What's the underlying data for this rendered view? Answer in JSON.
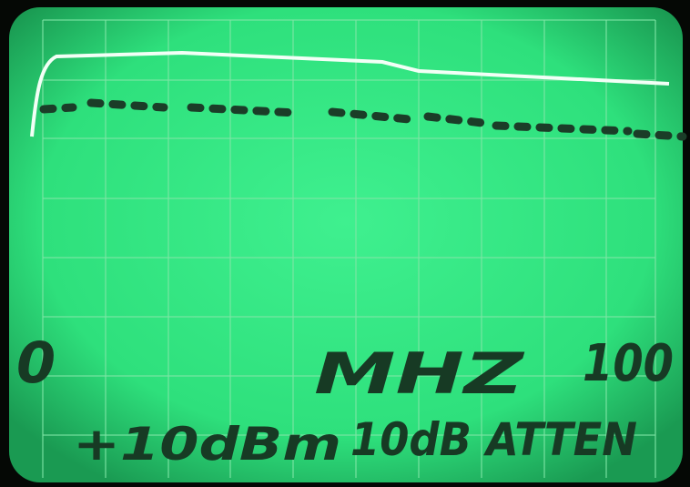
{
  "annotations": {
    "start": "0",
    "unit": "MHZ",
    "stop": "100",
    "level": "+10dBm",
    "attenuation": "10dB ATTEN"
  }
}
